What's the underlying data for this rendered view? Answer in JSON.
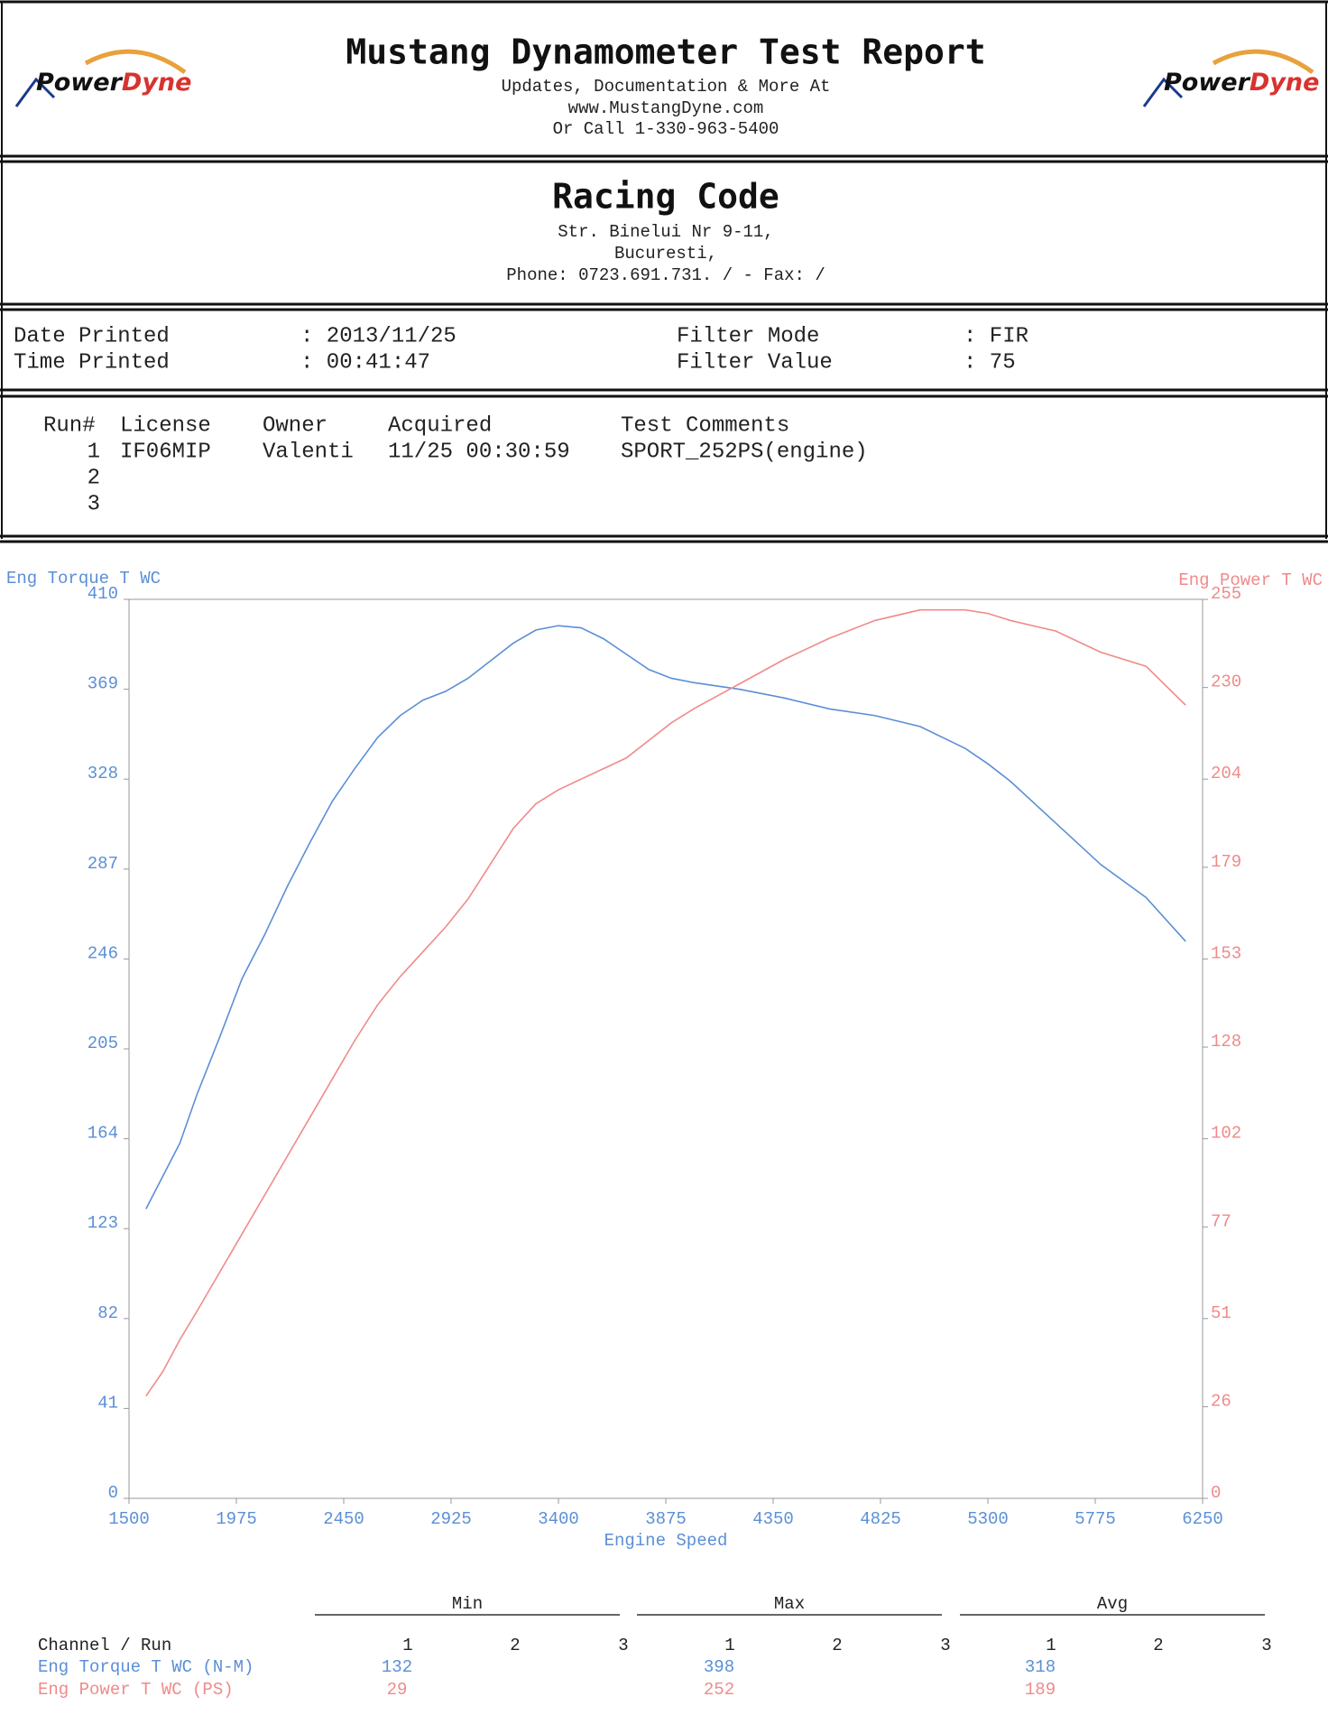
{
  "header": {
    "title": "Mustang Dynamometer Test Report",
    "lines": [
      "Updates, Documentation & More At",
      "www.MustangDyne.com",
      "Or Call 1-330-963-5400"
    ],
    "logo": [
      "Power",
      "Dyne"
    ]
  },
  "company": {
    "name": "Racing Code",
    "lines": [
      "Str. Binelui Nr 9-11,",
      "Bucuresti,",
      "Phone: 0723.691.731. /  - Fax:  /"
    ]
  },
  "info": [
    {
      "label": "Date Printed",
      "value": ": 2013/11/25"
    },
    {
      "label": "Time Printed",
      "value": ": 00:41:47"
    },
    {
      "label": "Filter Mode",
      "value": ": FIR"
    },
    {
      "label": "Filter Value",
      "value": ": 75"
    }
  ],
  "runs": {
    "headers": [
      "Run#",
      "License",
      "Owner",
      "Acquired",
      "Test Comments"
    ],
    "rows": [
      [
        "1",
        "IF06MIP",
        "Valenti",
        "11/25 00:30:59",
        "SPORT_252PS(engine)"
      ],
      [
        "2"
      ],
      [
        "3"
      ]
    ]
  },
  "chart_data": {
    "type": "line",
    "x_label": "Engine Speed",
    "x": [
      1575,
      1650,
      1725,
      1800,
      1900,
      2000,
      2100,
      2200,
      2300,
      2400,
      2500,
      2600,
      2700,
      2800,
      2900,
      3000,
      3100,
      3200,
      3300,
      3400,
      3500,
      3600,
      3700,
      3800,
      3900,
      4000,
      4200,
      4400,
      4600,
      4800,
      5000,
      5200,
      5300,
      5400,
      5600,
      5800,
      6000,
      6175
    ],
    "series": [
      {
        "name": "Eng Torque T WC",
        "color": "#5b8fd6",
        "values": [
          132,
          147,
          162,
          184,
          210,
          237,
          257,
          279,
          299,
          318,
          333,
          347,
          357,
          364,
          368,
          374,
          382,
          390,
          396,
          398,
          397,
          392,
          385,
          378,
          374,
          372,
          369,
          365,
          360,
          357,
          352,
          342,
          335,
          327,
          308,
          289,
          274,
          254
        ]
      },
      {
        "name": "Eng Power T WC",
        "color": "#f08a8a",
        "axis": "y2",
        "values": [
          29,
          36,
          45,
          53,
          64,
          75,
          86,
          97,
          108,
          119,
          130,
          140,
          148,
          155,
          162,
          170,
          180,
          190,
          197,
          201,
          204,
          207,
          210,
          215,
          220,
          224,
          231,
          238,
          244,
          249,
          252,
          252,
          251,
          249,
          246,
          240,
          236,
          225
        ]
      }
    ],
    "xlim": [
      1500,
      6250
    ],
    "xticks": [
      1500,
      1975,
      2450,
      2925,
      3400,
      3875,
      4350,
      4825,
      5300,
      5775,
      6250
    ],
    "ylim": [
      0,
      410
    ],
    "yticks": [
      0,
      41,
      82,
      123,
      164,
      205,
      246,
      287,
      328,
      369,
      410
    ],
    "y2lim": [
      0,
      255
    ],
    "y2ticks": [
      0,
      26,
      51,
      77,
      102,
      128,
      153,
      179,
      204,
      230,
      255
    ],
    "grid": false
  },
  "summary": {
    "groups": [
      "Min",
      "Max",
      "Avg"
    ],
    "channel_header": "Channel / Run",
    "runs": [
      "1",
      "2",
      "3"
    ],
    "rows": [
      {
        "name": "Eng Torque T WC (N-M)",
        "color": "#5b8fd6",
        "min": "132",
        "max": "398",
        "avg": "318"
      },
      {
        "name": "Eng Power T WC (PS)",
        "color": "#f08a8a",
        "min": "29",
        "max": "252",
        "avg": "189"
      }
    ]
  }
}
